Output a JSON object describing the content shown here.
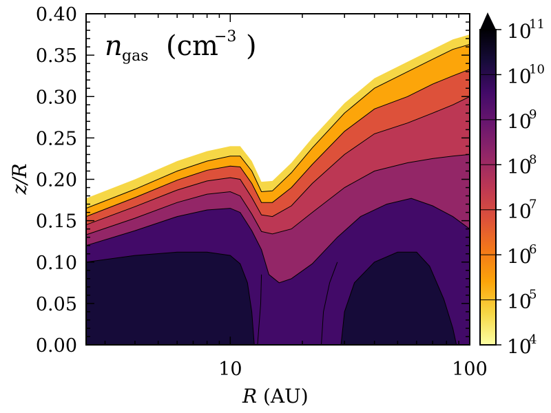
{
  "chart_data": {
    "type": "heatmap",
    "title": "",
    "annotation": {
      "symbol": "n",
      "subscript": "gas",
      "unit": "(cm",
      "unit_exp": "−3",
      "unit_close": ")"
    },
    "xlabel": {
      "symbol": "R",
      "unit": "(AU)"
    },
    "ylabel": "z/R",
    "xscale": "log",
    "xlim": [
      2.5,
      100
    ],
    "ylim": [
      0.0,
      0.4
    ],
    "xticks_major": [
      {
        "value": 10,
        "label": "10"
      },
      {
        "value": 100,
        "label": "100"
      }
    ],
    "yticks": [
      {
        "value": 0.0,
        "label": "0.00"
      },
      {
        "value": 0.05,
        "label": "0.05"
      },
      {
        "value": 0.1,
        "label": "0.10"
      },
      {
        "value": 0.15,
        "label": "0.15"
      },
      {
        "value": 0.2,
        "label": "0.20"
      },
      {
        "value": 0.25,
        "label": "0.25"
      },
      {
        "value": 0.3,
        "label": "0.30"
      },
      {
        "value": 0.35,
        "label": "0.35"
      },
      {
        "value": 0.4,
        "label": "0.40"
      }
    ],
    "colormap": "inferno_r",
    "colorbar": {
      "scale": "log",
      "range_log10": [
        4,
        11
      ],
      "extend": "max",
      "ticks": [
        {
          "base": "10",
          "exp": "4",
          "log": 4
        },
        {
          "base": "10",
          "exp": "5",
          "log": 5
        },
        {
          "base": "10",
          "exp": "6",
          "log": 6
        },
        {
          "base": "10",
          "exp": "7",
          "log": 7
        },
        {
          "base": "10",
          "exp": "8",
          "log": 8
        },
        {
          "base": "10",
          "exp": "9",
          "log": 9
        },
        {
          "base": "10",
          "exp": "10",
          "log": 10
        },
        {
          "base": "10",
          "exp": "11",
          "log": 11
        }
      ]
    },
    "contours": [
      {
        "level_log10": 5,
        "points": [
          [
            2.5,
            0.165
          ],
          [
            4,
            0.188
          ],
          [
            6,
            0.21
          ],
          [
            8,
            0.222
          ],
          [
            10,
            0.228
          ],
          [
            11,
            0.228
          ],
          [
            12.3,
            0.21
          ],
          [
            13.5,
            0.185
          ],
          [
            15,
            0.186
          ],
          [
            18,
            0.208
          ],
          [
            22,
            0.238
          ],
          [
            30,
            0.28
          ],
          [
            40,
            0.31
          ],
          [
            55,
            0.33
          ],
          [
            70,
            0.345
          ],
          [
            85,
            0.357
          ],
          [
            100,
            0.363
          ]
        ]
      },
      {
        "level_log10": 6,
        "points": [
          [
            2.5,
            0.155
          ],
          [
            4,
            0.178
          ],
          [
            6,
            0.199
          ],
          [
            8,
            0.211
          ],
          [
            10,
            0.216
          ],
          [
            11,
            0.215
          ],
          [
            12.3,
            0.195
          ],
          [
            13.5,
            0.172
          ],
          [
            15,
            0.172
          ],
          [
            18,
            0.19
          ],
          [
            22,
            0.218
          ],
          [
            30,
            0.258
          ],
          [
            40,
            0.285
          ],
          [
            55,
            0.3
          ],
          [
            70,
            0.315
          ],
          [
            85,
            0.325
          ],
          [
            100,
            0.333
          ]
        ]
      },
      {
        "level_log10": 7,
        "points": [
          [
            2.5,
            0.145
          ],
          [
            4,
            0.167
          ],
          [
            6,
            0.187
          ],
          [
            8,
            0.198
          ],
          [
            10,
            0.202
          ],
          [
            11,
            0.2
          ],
          [
            12.3,
            0.178
          ],
          [
            13.5,
            0.157
          ],
          [
            15,
            0.155
          ],
          [
            18,
            0.168
          ],
          [
            22,
            0.195
          ],
          [
            30,
            0.23
          ],
          [
            40,
            0.255
          ],
          [
            55,
            0.268
          ],
          [
            70,
            0.28
          ],
          [
            85,
            0.29
          ],
          [
            100,
            0.3
          ]
        ]
      },
      {
        "level_log10": 8,
        "points": [
          [
            2.5,
            0.133
          ],
          [
            4,
            0.153
          ],
          [
            6,
            0.172
          ],
          [
            8,
            0.182
          ],
          [
            10,
            0.185
          ],
          [
            11,
            0.18
          ],
          [
            12.3,
            0.158
          ],
          [
            13.5,
            0.137
          ],
          [
            15,
            0.134
          ],
          [
            18,
            0.14
          ],
          [
            22,
            0.16
          ],
          [
            30,
            0.19
          ],
          [
            40,
            0.21
          ],
          [
            55,
            0.22
          ],
          [
            70,
            0.225
          ],
          [
            85,
            0.228
          ],
          [
            100,
            0.23
          ]
        ]
      },
      {
        "level_log10": 9,
        "points": [
          [
            2.5,
            0.12
          ],
          [
            4,
            0.138
          ],
          [
            6,
            0.155
          ],
          [
            8,
            0.163
          ],
          [
            10,
            0.165
          ],
          [
            11,
            0.16
          ],
          [
            12.3,
            0.138
          ],
          [
            13.5,
            0.115
          ],
          [
            14.5,
            0.085
          ],
          [
            16,
            0.075
          ],
          [
            18,
            0.08
          ],
          [
            22,
            0.098
          ],
          [
            28,
            0.13
          ],
          [
            35,
            0.155
          ],
          [
            45,
            0.17
          ],
          [
            57,
            0.177
          ],
          [
            70,
            0.168
          ],
          [
            85,
            0.155
          ],
          [
            100,
            0.14
          ]
        ]
      },
      {
        "level_log10": 10,
        "points": [
          [
            2.5,
            0.1
          ],
          [
            4,
            0.108
          ],
          [
            6,
            0.112
          ],
          [
            8,
            0.112
          ],
          [
            10,
            0.108
          ],
          [
            11,
            0.098
          ],
          [
            11.8,
            0.075
          ],
          [
            12.3,
            0.04
          ],
          [
            12.6,
            0.0
          ]
        ]
      },
      {
        "level_log10": 10.0,
        "points": [
          [
            29,
            0.0
          ],
          [
            30,
            0.04
          ],
          [
            33,
            0.075
          ],
          [
            40,
            0.1
          ],
          [
            50,
            0.112
          ],
          [
            60,
            0.112
          ],
          [
            68,
            0.095
          ],
          [
            78,
            0.055
          ],
          [
            85,
            0.02
          ],
          [
            88,
            0.0
          ]
        ]
      },
      {
        "level_log10": 9.0,
        "points": [
          [
            13,
            0.0
          ],
          [
            13.4,
            0.05
          ],
          [
            13.5,
            0.085
          ]
        ]
      },
      {
        "level_log10": 9.0,
        "points": [
          [
            24,
            0.0
          ],
          [
            24.5,
            0.04
          ],
          [
            26,
            0.075
          ],
          [
            28,
            0.1
          ]
        ]
      }
    ]
  }
}
